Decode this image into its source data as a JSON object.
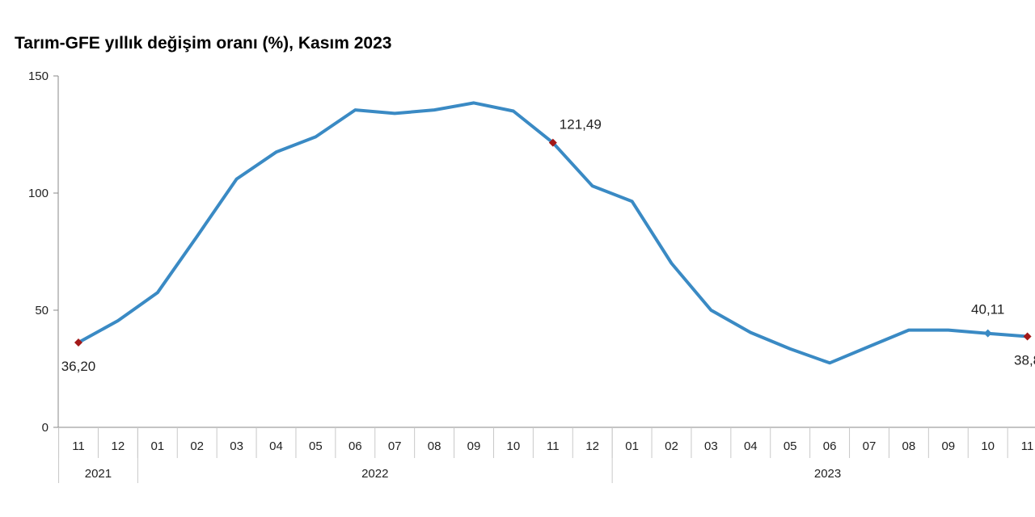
{
  "chart_data": {
    "type": "line",
    "title": "Tarım-GFE yıllık değişim oranı (%), Kasım 2023",
    "xlabel": "",
    "ylabel": "",
    "ylim": [
      0,
      150
    ],
    "yticks": [
      "0",
      "50",
      "100",
      "150"
    ],
    "categories": [
      "11",
      "12",
      "01",
      "02",
      "03",
      "04",
      "05",
      "06",
      "07",
      "08",
      "09",
      "10",
      "11",
      "12",
      "01",
      "02",
      "03",
      "04",
      "05",
      "06",
      "07",
      "08",
      "09",
      "10",
      "11"
    ],
    "year_groups": [
      {
        "label": "2021",
        "count": 2
      },
      {
        "label": "2022",
        "count": 12
      },
      {
        "label": "2023",
        "count": 11
      }
    ],
    "series": [
      {
        "name": "Tarım-GFE",
        "color": "#3a8ac4",
        "values": [
          36.2,
          45.5,
          57.5,
          81.5,
          106,
          117.5,
          124,
          135.5,
          134,
          135.5,
          138.5,
          135,
          121.49,
          103,
          96.5,
          70,
          50,
          40.5,
          33.5,
          27.5,
          34.5,
          41.5,
          41.5,
          40.11,
          38.8
        ]
      }
    ],
    "annotations": [
      {
        "index": 0,
        "label": "36,20",
        "marker_color": "#a31919",
        "label_pos": "below"
      },
      {
        "index": 12,
        "label": "121,49",
        "marker_color": "#a31919",
        "label_pos": "above-right"
      },
      {
        "index": 23,
        "label": "40,11",
        "marker_color": "#3a8ac4",
        "label_pos": "above"
      },
      {
        "index": 24,
        "label": "38,8",
        "marker_color": "#a31919",
        "label_pos": "below"
      }
    ]
  }
}
